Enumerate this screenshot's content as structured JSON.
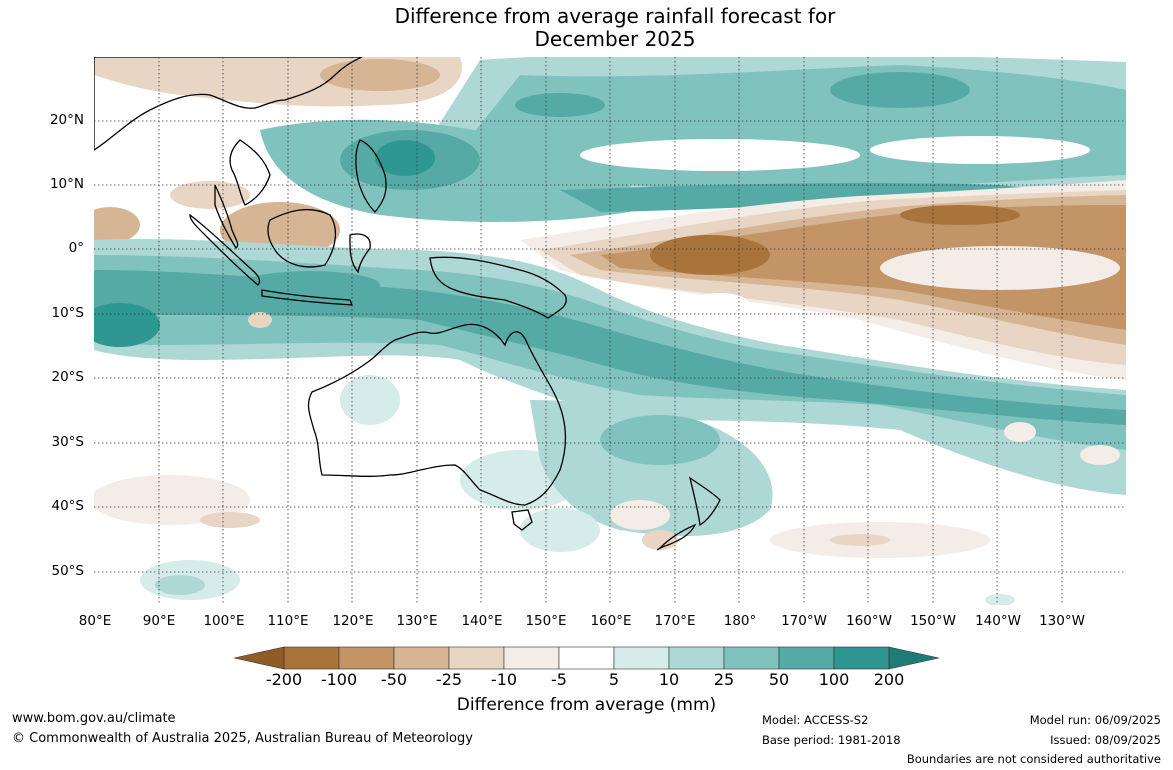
{
  "title": {
    "line1": "Difference from average rainfall forecast for",
    "line2": "December 2025"
  },
  "map": {
    "lat_labels": [
      "20°N",
      "10°N",
      "0°",
      "10°S",
      "20°S",
      "30°S",
      "40°S",
      "50°S"
    ],
    "lon_labels": [
      "80°E",
      "90°E",
      "100°E",
      "110°E",
      "120°E",
      "130°E",
      "140°E",
      "150°E",
      "160°E",
      "170°E",
      "180°",
      "170°W",
      "160°W",
      "150°W",
      "140°W",
      "130°W"
    ]
  },
  "colorbar": {
    "ticks": [
      "-200",
      "-100",
      "-50",
      "-25",
      "-10",
      "-5",
      "5",
      "10",
      "25",
      "50",
      "100",
      "200"
    ],
    "colors": [
      "#a8743c",
      "#c29466",
      "#d6b594",
      "#e8d5c4",
      "#f4ece6",
      "#ffffff",
      "#d6ecea",
      "#aed8d6",
      "#80c2be",
      "#56aaa6",
      "#2f9792"
    ],
    "extend_low_color": "#8f5c28",
    "extend_high_color": "#1e7b76",
    "label": "Difference from average (mm)"
  },
  "footer": {
    "website": "www.bom.gov.au/climate",
    "copyright": "© Commonwealth of Australia 2025, Australian Bureau of Meteorology",
    "model": "Model: ACCESS-S2",
    "base_period": "Base period: 1981-2018",
    "model_run": "Model run: 06/09/2025",
    "issued": "Issued: 08/09/2025",
    "disclaimer": "Boundaries are not considered authoritative"
  }
}
